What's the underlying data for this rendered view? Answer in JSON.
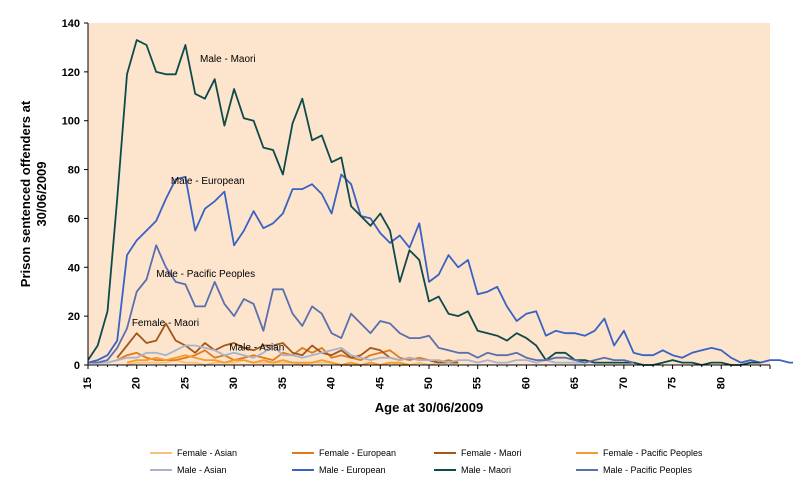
{
  "chart_data": {
    "type": "line",
    "xlabel": "Age at 30/06/2009",
    "ylabel": "Prison sentenced offenders at 30/06/2009",
    "xlim": [
      15,
      85
    ],
    "ylim": [
      0,
      140
    ],
    "x_ticks": [
      15,
      20,
      25,
      30,
      35,
      40,
      45,
      50,
      55,
      60,
      65,
      70,
      75,
      80
    ],
    "y_ticks": [
      0,
      20,
      40,
      60,
      80,
      100,
      120,
      140
    ],
    "grid": false,
    "legend_position": "bottom",
    "plot_background": "#fde5cd",
    "annotations": [
      {
        "text": "Male - Maori",
        "x": 26.5,
        "y": 124
      },
      {
        "text": "Male - European",
        "x": 23.5,
        "y": 74
      },
      {
        "text": "Male - Pacific Peoples",
        "x": 22,
        "y": 36
      },
      {
        "text": "Female - Maori",
        "x": 19.5,
        "y": 16
      },
      {
        "text": "Male - Asian",
        "x": 29.5,
        "y": 6
      }
    ],
    "series": [
      {
        "name": "Female - Asian",
        "color": "#f9c07a",
        "start": 19,
        "values": [
          0,
          1,
          1,
          1,
          1,
          2,
          1,
          1,
          0,
          1,
          1,
          1,
          2,
          1,
          1,
          1,
          1,
          1,
          0,
          1,
          1,
          1,
          0,
          0,
          0,
          1,
          0,
          1,
          0,
          0,
          1,
          0,
          1
        ]
      },
      {
        "name": "Female - European",
        "color": "#e07b1a",
        "start": 18,
        "values": [
          2,
          4,
          5,
          3,
          2,
          2,
          2,
          3,
          4,
          6,
          3,
          4,
          2,
          3,
          4,
          3,
          2,
          5,
          4,
          7,
          5,
          7,
          3,
          4,
          3,
          2,
          4,
          5,
          6,
          3,
          2,
          3,
          2,
          1,
          2,
          1
        ]
      },
      {
        "name": "Female - Maori",
        "color": "#a5561a",
        "start": 18,
        "values": [
          3,
          8,
          13,
          9,
          10,
          17,
          10,
          8,
          5,
          9,
          6,
          8,
          9,
          7,
          6,
          8,
          8,
          9,
          5,
          4,
          8,
          5,
          4,
          6,
          3,
          4,
          7,
          6,
          3,
          2,
          3,
          2,
          2,
          1,
          1,
          1
        ]
      },
      {
        "name": "Female - Pacific Peoples",
        "color": "#f59b2f",
        "start": 19,
        "values": [
          1,
          2,
          2,
          3,
          2,
          3,
          4,
          3,
          2,
          2,
          1,
          2,
          2,
          1,
          2,
          1,
          2,
          1,
          1,
          1,
          2,
          1,
          0,
          1,
          0,
          1,
          0,
          1,
          1,
          0
        ]
      },
      {
        "name": "Male - Asian",
        "color": "#a9b3c9",
        "start": 15,
        "values": [
          1,
          1,
          1,
          2,
          3,
          3,
          5,
          5,
          4,
          6,
          8,
          8,
          7,
          6,
          4,
          5,
          4,
          3,
          5,
          8,
          4,
          4,
          3,
          4,
          5,
          6,
          7,
          4,
          3,
          2,
          3,
          3,
          2,
          3,
          2,
          2,
          2,
          1,
          2,
          2,
          1,
          2,
          1,
          1,
          2,
          2,
          1,
          2,
          1,
          1,
          1,
          1
        ]
      },
      {
        "name": "Male - European",
        "color": "#3a62c2",
        "start": 15,
        "values": [
          1,
          2,
          4,
          10,
          45,
          51,
          55,
          59,
          68,
          76,
          77,
          55,
          64,
          67,
          71,
          49,
          55,
          63,
          56,
          58,
          62,
          72,
          72,
          74,
          70,
          62,
          78,
          74,
          61,
          60,
          54,
          50,
          53,
          48,
          58,
          34,
          37,
          45,
          40,
          43,
          29,
          30,
          32,
          24,
          18,
          21,
          22,
          12,
          14,
          13,
          13,
          12,
          14,
          19,
          8,
          14,
          5,
          4,
          4,
          6,
          4,
          3,
          5,
          6,
          7,
          6,
          3,
          1,
          2,
          1,
          2,
          2,
          1,
          1
        ]
      },
      {
        "name": "Male - Maori",
        "color": "#0f4a4a",
        "start": 15,
        "values": [
          2,
          8,
          22,
          68,
          119,
          133,
          131,
          120,
          119,
          119,
          131,
          111,
          109,
          117,
          98,
          113,
          101,
          100,
          89,
          88,
          78,
          99,
          109,
          92,
          94,
          83,
          85,
          65,
          61,
          57,
          62,
          55,
          34,
          47,
          43,
          26,
          28,
          21,
          20,
          22,
          14,
          13,
          12,
          10,
          13,
          11,
          8,
          2,
          5,
          5,
          2,
          2,
          1,
          1,
          1,
          1,
          1,
          0,
          0,
          1,
          2,
          1,
          1,
          0,
          1,
          1,
          0,
          0,
          1,
          1
        ]
      },
      {
        "name": "Male - Pacific Peoples",
        "color": "#5a70ae",
        "start": 15,
        "values": [
          1,
          1,
          2,
          7,
          15,
          30,
          35,
          49,
          40,
          34,
          33,
          24,
          24,
          34,
          25,
          20,
          27,
          25,
          14,
          31,
          31,
          21,
          16,
          24,
          21,
          13,
          11,
          21,
          17,
          13,
          18,
          17,
          13,
          11,
          11,
          12,
          7,
          6,
          5,
          5,
          3,
          5,
          4,
          4,
          5,
          3,
          2,
          2,
          3,
          3,
          2,
          1,
          2,
          3,
          2,
          2,
          1
        ]
      }
    ]
  }
}
